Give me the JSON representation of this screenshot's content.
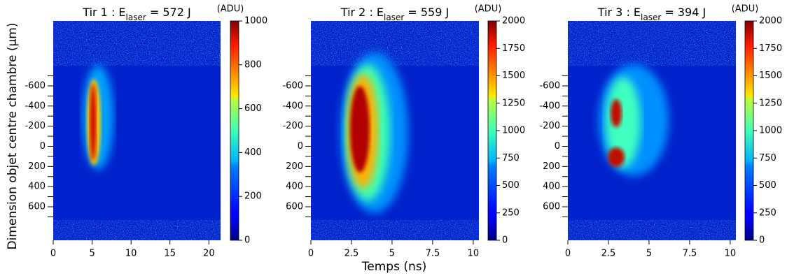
{
  "chart_data": [
    {
      "type": "heatmap",
      "title": "Tir 1 : E",
      "title_sub": "laser",
      "title_end": " = 572 J",
      "colormap": "jet",
      "xlim": [
        0,
        21.5
      ],
      "xticks": [
        0,
        5,
        10,
        15,
        20
      ],
      "ylim": [
        -1245,
        933
      ],
      "yticks": [
        -600,
        -400,
        -200,
        0,
        200,
        400,
        600
      ],
      "yminor": [
        -700,
        -500,
        -300,
        -100,
        100,
        300,
        500,
        700
      ],
      "colorbar_label": "(ADU)",
      "clim": [
        0,
        1000
      ],
      "cticks": [
        0,
        200,
        400,
        600,
        800,
        1000
      ]
    },
    {
      "type": "heatmap",
      "title": "Tir 2 : E",
      "title_sub": "laser",
      "title_end": " = 559 J",
      "colormap": "jet",
      "xlim": [
        0,
        10.35
      ],
      "xticks": [
        0,
        2.5,
        5,
        7.5,
        10
      ],
      "ylim": [
        -1245,
        933
      ],
      "yticks": [
        -600,
        -400,
        -200,
        0,
        200,
        400,
        600
      ],
      "yminor": [
        -700,
        -500,
        -300,
        -100,
        100,
        300,
        500,
        700
      ],
      "colorbar_label": "(ADU)",
      "clim": [
        0,
        2000
      ],
      "cticks": [
        0,
        250,
        500,
        750,
        1000,
        1250,
        1500,
        1750,
        2000
      ]
    },
    {
      "type": "heatmap",
      "title": "Tir 3 : E",
      "title_sub": "laser",
      "title_end": " = 394 J",
      "colormap": "jet",
      "xlim": [
        0,
        10.35
      ],
      "xticks": [
        0,
        2.5,
        5,
        7.5,
        10
      ],
      "ylim": [
        -1245,
        933
      ],
      "yticks": [
        -600,
        -400,
        -200,
        0,
        200,
        400,
        600
      ],
      "yminor": [
        -700,
        -500,
        -300,
        -100,
        100,
        300,
        500,
        700
      ],
      "colorbar_label": "(ADU)",
      "clim": [
        0,
        2000
      ],
      "cticks": [
        0,
        250,
        500,
        750,
        1000,
        1250,
        1500,
        1750,
        2000
      ]
    }
  ],
  "xlabel": "Temps (ns)",
  "ylabel": "Dimension objet centre chambre (µm)"
}
